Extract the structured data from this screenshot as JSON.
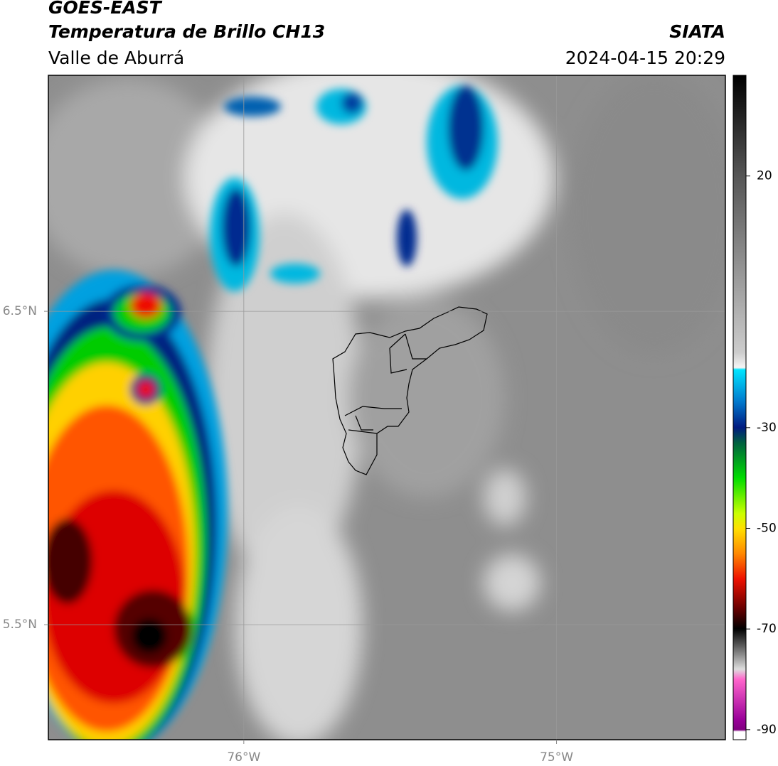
{
  "header": {
    "title": "GOES-EAST",
    "subtitle": "Temperatura de Brillo CH13",
    "region": "Valle de Aburrá",
    "source": "SIATA",
    "datetime": "2024-04-15 20:29"
  },
  "map": {
    "xlim": [
      -76.625,
      -74.46
    ],
    "ylim": [
      5.133,
      7.253
    ],
    "xticks": [
      {
        "value": -76,
        "label": "76°W"
      },
      {
        "value": -75,
        "label": "75°W"
      }
    ],
    "yticks": [
      {
        "value": 6.5,
        "label": "6.5°N"
      },
      {
        "value": 5.5,
        "label": "5.5°N"
      }
    ],
    "grid": true
  },
  "colorbar": {
    "lim": [
      -92,
      40
    ],
    "ticks": [
      20,
      -30,
      -50,
      -70,
      -90
    ]
  }
}
